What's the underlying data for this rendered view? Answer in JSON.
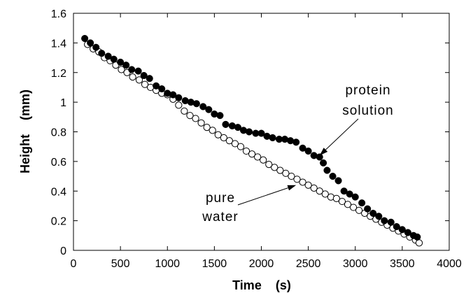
{
  "chart_data": {
    "type": "scatter",
    "xlabel": "Time    (s)",
    "ylabel": "Height    (mm)",
    "xlim": [
      0,
      4000
    ],
    "ylim": [
      0,
      1.6
    ],
    "xticks": [
      "0",
      "500",
      "1000",
      "1500",
      "2000",
      "2500",
      "3000",
      "3500",
      "4000"
    ],
    "yticks": [
      "0",
      "0.2",
      "0.4",
      "0.6",
      "0.8",
      "1",
      "1.2",
      "1.4",
      "1.6"
    ],
    "grid": false,
    "series": [
      {
        "name": "protein solution",
        "marker": "filled-circle",
        "color": "#000000",
        "x": [
          120,
          180,
          240,
          300,
          370,
          430,
          500,
          560,
          620,
          690,
          750,
          810,
          880,
          940,
          1000,
          1060,
          1120,
          1190,
          1250,
          1310,
          1380,
          1440,
          1500,
          1560,
          1620,
          1690,
          1750,
          1810,
          1870,
          1940,
          2000,
          2060,
          2120,
          2190,
          2250,
          2310,
          2370,
          2440,
          2500,
          2560,
          2620,
          2660,
          2700,
          2760,
          2820,
          2880,
          2940,
          3000,
          3070,
          3130,
          3190,
          3250,
          3310,
          3380,
          3440,
          3500,
          3560,
          3620,
          3660
        ],
        "y": [
          1.43,
          1.4,
          1.37,
          1.33,
          1.31,
          1.29,
          1.27,
          1.25,
          1.22,
          1.21,
          1.18,
          1.16,
          1.11,
          1.09,
          1.06,
          1.05,
          1.03,
          1.01,
          1.0,
          0.99,
          0.97,
          0.95,
          0.92,
          0.91,
          0.85,
          0.84,
          0.83,
          0.81,
          0.8,
          0.79,
          0.79,
          0.77,
          0.76,
          0.75,
          0.75,
          0.74,
          0.73,
          0.69,
          0.67,
          0.64,
          0.63,
          0.59,
          0.54,
          0.5,
          0.47,
          0.4,
          0.38,
          0.36,
          0.32,
          0.28,
          0.25,
          0.23,
          0.2,
          0.19,
          0.16,
          0.14,
          0.12,
          0.1,
          0.09
        ]
      },
      {
        "name": "pure water",
        "marker": "open-circle",
        "color": "#000000",
        "x": [
          150,
          210,
          270,
          330,
          390,
          450,
          510,
          570,
          630,
          700,
          760,
          820,
          880,
          940,
          1000,
          1060,
          1120,
          1180,
          1240,
          1300,
          1360,
          1420,
          1480,
          1540,
          1600,
          1660,
          1720,
          1780,
          1840,
          1900,
          1960,
          2020,
          2080,
          2140,
          2200,
          2260,
          2320,
          2380,
          2440,
          2500,
          2560,
          2620,
          2680,
          2740,
          2800,
          2860,
          2920,
          2980,
          3040,
          3100,
          3160,
          3220,
          3280,
          3340,
          3400,
          3460,
          3520,
          3580,
          3640,
          3680
        ],
        "y": [
          1.39,
          1.36,
          1.34,
          1.3,
          1.28,
          1.25,
          1.22,
          1.2,
          1.17,
          1.15,
          1.12,
          1.1,
          1.08,
          1.06,
          1.05,
          1.02,
          0.98,
          0.94,
          0.91,
          0.89,
          0.86,
          0.83,
          0.81,
          0.78,
          0.76,
          0.74,
          0.72,
          0.7,
          0.67,
          0.65,
          0.63,
          0.61,
          0.58,
          0.56,
          0.54,
          0.52,
          0.5,
          0.48,
          0.46,
          0.44,
          0.42,
          0.4,
          0.38,
          0.36,
          0.35,
          0.33,
          0.31,
          0.29,
          0.27,
          0.25,
          0.23,
          0.21,
          0.19,
          0.17,
          0.15,
          0.13,
          0.11,
          0.09,
          0.07,
          0.05
        ]
      }
    ],
    "annotations": [
      {
        "lines": [
          "protein",
          "solution"
        ],
        "arrow_to": [
          2620,
          0.64
        ]
      },
      {
        "lines": [
          "pure",
          "water"
        ],
        "arrow_to": [
          2370,
          0.44
        ]
      }
    ]
  }
}
